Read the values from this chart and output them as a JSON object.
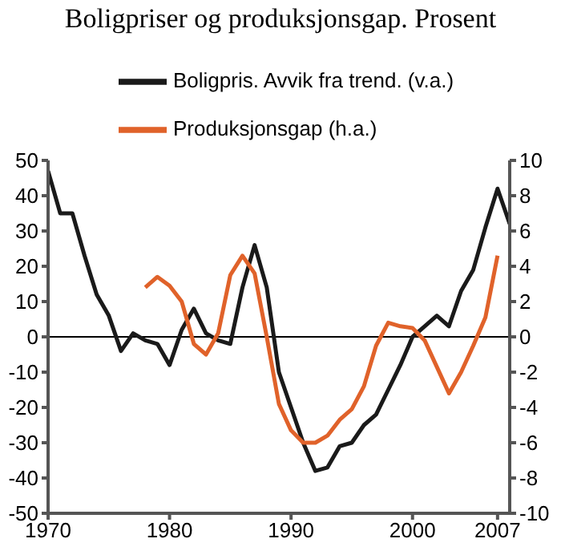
{
  "chart_data": {
    "type": "line",
    "title": "Boligpriser og produksjonsgap. Prosent",
    "x": [
      1970,
      1971,
      1972,
      1973,
      1974,
      1975,
      1976,
      1977,
      1978,
      1979,
      1980,
      1981,
      1982,
      1983,
      1984,
      1985,
      1986,
      1987,
      1988,
      1989,
      1990,
      1991,
      1992,
      1993,
      1994,
      1995,
      1996,
      1997,
      1998,
      1999,
      2000,
      2001,
      2002,
      2003,
      2004,
      2005,
      2006,
      2007,
      2008
    ],
    "series": [
      {
        "name": "Boligpris. Avvik fra trend. (v.a.)",
        "color": "#1a1a1a",
        "values": [
          47,
          35,
          35,
          23,
          12,
          6,
          -4,
          1,
          -1,
          -2,
          -8,
          2,
          8,
          1,
          -1,
          -2,
          14,
          26,
          14,
          -10,
          -20,
          -30,
          -38,
          -37,
          -31,
          -30,
          -25,
          -22,
          -15,
          -8,
          0,
          3,
          6,
          3,
          13,
          19,
          31,
          42,
          32
        ]
      },
      {
        "name": "Produksjonsgap (h.a.)",
        "color": "#e0622a",
        "axis": "y2",
        "values": [
          null,
          null,
          null,
          null,
          null,
          null,
          null,
          null,
          2.8,
          3.4,
          2.9,
          2.0,
          -0.4,
          -1.0,
          0.2,
          3.5,
          4.6,
          3.6,
          0,
          -3.8,
          -5.3,
          -6.0,
          -6.0,
          -5.6,
          -4.7,
          -4.1,
          -2.8,
          -0.5,
          0.8,
          0.6,
          0.5,
          -0.2,
          -1.7,
          -3.2,
          -2.0,
          -0.5,
          1.1,
          4.6,
          null
        ]
      }
    ],
    "xlim": [
      1970,
      2008
    ],
    "xticks": [
      1970,
      1980,
      1990,
      2000,
      2007
    ],
    "ylim": [
      -50,
      50
    ],
    "yticks": [
      -50,
      -40,
      -30,
      -20,
      -10,
      0,
      10,
      20,
      30,
      40,
      50
    ],
    "y2lim": [
      -10,
      10
    ],
    "y2ticks": [
      -10,
      -8,
      -6,
      -4,
      -2,
      0,
      2,
      4,
      6,
      8,
      10
    ],
    "ref_lines": [
      {
        "axis": "y",
        "value": 0,
        "color": "#000000"
      }
    ],
    "grid": false,
    "legend": "top right",
    "marker": "none",
    "line_style": "solid"
  }
}
